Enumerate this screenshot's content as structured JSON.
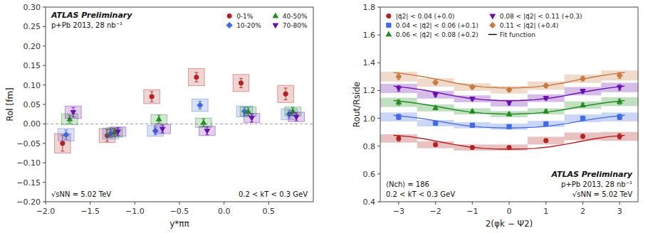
{
  "chart_data": [
    {
      "type": "scatter",
      "xlabel": "y*ππ",
      "ylabel": "Rol [fm]",
      "xlim": [
        -2.0,
        1.0
      ],
      "ylim": [
        -0.2,
        0.3
      ],
      "xticks": [
        {
          "value": -2,
          "label": "−2.0"
        },
        {
          "value": -1.5,
          "label": "−1.5"
        },
        {
          "value": -1,
          "label": "−1.0"
        },
        {
          "value": -0.5,
          "label": "−0.5"
        },
        {
          "value": 0,
          "label": "0.0"
        },
        0.5
      ],
      "yticks": [
        {
          "value": -0.2,
          "label": "−0.20"
        },
        {
          "value": -0.15,
          "label": "−0.15"
        },
        {
          "value": -0.1,
          "label": "−0.10"
        },
        {
          "value": -0.05,
          "label": "−0.05"
        },
        {
          "value": 0.0,
          "label": "0.00"
        },
        {
          "value": 0.05,
          "label": "0.05"
        },
        {
          "value": 0.1,
          "label": "0.10"
        },
        {
          "value": 0.15,
          "label": "0.15"
        },
        {
          "value": 0.2,
          "label": "0.20"
        },
        {
          "value": 0.25,
          "label": "0.25"
        },
        {
          "value": 0.3,
          "label": "0.30"
        }
      ],
      "grid": false,
      "legend": "upper right",
      "hline": 0,
      "annotations": [
        "ATLAS Preliminary",
        "p+Pb 2013, 28 nb⁻¹",
        "√sNN = 5.02 TeV",
        "0.2 < kT < 0.3 GeV"
      ],
      "series": [
        {
          "name": "0-1%",
          "color": "#b22222",
          "marker": "circle",
          "x": [
            -1.75,
            -1.25,
            -0.75,
            -0.25,
            0.25,
            0.75
          ],
          "values": [
            -0.05,
            -0.03,
            0.07,
            0.12,
            0.105,
            0.077
          ],
          "yerr_stat": [
            0.02,
            0.015,
            0.013,
            0.012,
            0.012,
            0.015
          ],
          "yerr_sys": [
            0.025,
            0.018,
            0.018,
            0.022,
            0.022,
            0.022
          ]
        },
        {
          "name": "10-20%",
          "color": "#4169e1",
          "marker": "diamond",
          "x": [
            -1.75,
            -1.25,
            -0.75,
            -0.25,
            0.25,
            0.75
          ],
          "values": [
            -0.028,
            -0.025,
            -0.018,
            0.048,
            0.032,
            0.025
          ],
          "yerr_stat": [
            0.012,
            0.01,
            0.01,
            0.01,
            0.01,
            0.01
          ],
          "yerr_sys": [
            0.016,
            0.014,
            0.014,
            0.016,
            0.014,
            0.014
          ]
        },
        {
          "name": "40-50%",
          "color": "#228B22",
          "marker": "triangle-up",
          "x": [
            -1.75,
            -1.25,
            -0.75,
            -0.25,
            0.25,
            0.75
          ],
          "values": [
            0.012,
            -0.022,
            0.012,
            0.003,
            0.032,
            0.032
          ],
          "yerr_stat": [
            0.01,
            0.01,
            0.01,
            0.01,
            0.01,
            0.01
          ],
          "yerr_sys": [
            0.014,
            0.012,
            0.012,
            0.012,
            0.012,
            0.012
          ]
        },
        {
          "name": "70-80%",
          "color": "#6a0dad",
          "marker": "triangle-down",
          "x": [
            -1.75,
            -1.25,
            -0.75,
            -0.25,
            0.25,
            0.75
          ],
          "values": [
            0.03,
            -0.02,
            -0.013,
            -0.018,
            0.015,
            0.018
          ],
          "yerr_stat": [
            0.012,
            0.01,
            0.01,
            0.01,
            0.01,
            0.01
          ],
          "yerr_sys": [
            0.016,
            0.012,
            0.012,
            0.012,
            0.012,
            0.012
          ]
        }
      ]
    },
    {
      "type": "scatter",
      "xlabel": "2(φk − Ψ2)",
      "ylabel": "Rout/Rside",
      "xlim": [
        -3.5,
        3.5
      ],
      "ylim": [
        0.4,
        1.8
      ],
      "xticks": [
        {
          "value": -3,
          "label": "−3"
        },
        {
          "value": -2,
          "label": "−2"
        },
        {
          "value": -1,
          "label": "−1"
        },
        0,
        1,
        2,
        3
      ],
      "yticks": [
        0.4,
        0.6,
        0.8,
        {
          "value": 1.0,
          "label": "1.0"
        },
        1.2,
        1.4,
        1.6,
        1.8
      ],
      "grid": false,
      "legend": "upper left",
      "fit_label": "Fit function",
      "annotations": [
        "ATLAS Preliminary",
        "p+Pb 2013, 28 nb⁻¹",
        "⟨Nch⟩ = 186",
        "√sNN = 5.02 TeV",
        "0.2 < kT < 0.3 GeV"
      ],
      "series": [
        {
          "name": "|q⃗2| < 0.04 (+0.0)",
          "color": "#b22222",
          "marker": "circle",
          "x": [
            -3.0,
            -2.0,
            -1.0,
            0.0,
            1.0,
            2.0,
            3.0
          ],
          "values": [
            0.855,
            0.81,
            0.79,
            0.79,
            0.84,
            0.87,
            0.87
          ],
          "yerr_stat": [
            0.02,
            0.014,
            0.012,
            0.012,
            0.012,
            0.014,
            0.02
          ],
          "band_low": [
            0.825,
            0.785,
            0.768,
            0.768,
            0.812,
            0.842,
            0.838
          ],
          "band_high": [
            0.885,
            0.835,
            0.812,
            0.812,
            0.868,
            0.898,
            0.902
          ],
          "fit_x": [
            -3.14,
            -2.7,
            -2.3,
            -1.9,
            -1.5,
            -1.1,
            -0.7,
            -0.3,
            0.0,
            0.3,
            0.7,
            1.1,
            1.5,
            1.9,
            2.3,
            2.7,
            3.14
          ],
          "fit_y": [
            0.878,
            0.868,
            0.852,
            0.832,
            0.812,
            0.795,
            0.784,
            0.779,
            0.778,
            0.779,
            0.784,
            0.795,
            0.812,
            0.832,
            0.852,
            0.868,
            0.878
          ]
        },
        {
          "name": "0.04 < |q⃗2| < 0.06 (+0.1)",
          "color": "#4169e1",
          "marker": "square",
          "x": [
            -3.0,
            -2.0,
            -1.0,
            0.0,
            1.0,
            2.0,
            3.0
          ],
          "values": [
            1.01,
            0.965,
            0.95,
            0.94,
            0.96,
            1.0,
            1.01
          ],
          "yerr_stat": [
            0.02,
            0.014,
            0.012,
            0.012,
            0.012,
            0.014,
            0.02
          ],
          "band_low": [
            0.978,
            0.942,
            0.928,
            0.918,
            0.938,
            0.972,
            0.978
          ],
          "band_high": [
            1.042,
            0.988,
            0.972,
            0.962,
            0.982,
            1.028,
            1.042
          ],
          "fit_x": [
            -3.14,
            -2.7,
            -2.3,
            -1.9,
            -1.5,
            -1.1,
            -0.7,
            -0.3,
            0.0,
            0.3,
            0.7,
            1.1,
            1.5,
            1.9,
            2.3,
            2.7,
            3.14
          ],
          "fit_y": [
            1.022,
            1.01,
            0.996,
            0.978,
            0.96,
            0.945,
            0.936,
            0.932,
            0.93,
            0.932,
            0.936,
            0.945,
            0.96,
            0.978,
            0.996,
            1.01,
            1.022
          ]
        },
        {
          "name": "0.06 < |q⃗2| < 0.08 (+0.2)",
          "color": "#228B22",
          "marker": "triangle-up",
          "x": [
            -3.0,
            -2.0,
            -1.0,
            0.0,
            1.0,
            2.0,
            3.0
          ],
          "values": [
            1.115,
            1.075,
            1.05,
            1.03,
            1.05,
            1.095,
            1.12
          ],
          "yerr_stat": [
            0.02,
            0.014,
            0.012,
            0.012,
            0.012,
            0.014,
            0.02
          ],
          "band_low": [
            1.082,
            1.05,
            1.028,
            1.008,
            1.028,
            1.068,
            1.088
          ],
          "band_high": [
            1.148,
            1.1,
            1.072,
            1.052,
            1.072,
            1.122,
            1.152
          ],
          "fit_x": [
            -3.14,
            -2.7,
            -2.3,
            -1.9,
            -1.5,
            -1.1,
            -0.7,
            -0.3,
            0.0,
            0.3,
            0.7,
            1.1,
            1.5,
            1.9,
            2.3,
            2.7,
            3.14
          ],
          "fit_y": [
            1.128,
            1.115,
            1.1,
            1.082,
            1.063,
            1.047,
            1.037,
            1.032,
            1.03,
            1.032,
            1.037,
            1.047,
            1.063,
            1.082,
            1.1,
            1.115,
            1.128
          ]
        },
        {
          "name": "0.08 < |q⃗2| < 0.11 (+0.3)",
          "color": "#6a0dad",
          "marker": "triangle-down",
          "x": [
            -3.0,
            -2.0,
            -1.0,
            0.0,
            1.0,
            2.0,
            3.0
          ],
          "values": [
            1.215,
            1.17,
            1.14,
            1.11,
            1.145,
            1.195,
            1.222
          ],
          "yerr_stat": [
            0.02,
            0.014,
            0.012,
            0.012,
            0.012,
            0.014,
            0.02
          ],
          "band_low": [
            1.182,
            1.142,
            1.115,
            1.085,
            1.118,
            1.165,
            1.188
          ],
          "band_high": [
            1.248,
            1.198,
            1.165,
            1.135,
            1.172,
            1.225,
            1.256
          ],
          "fit_x": [
            -3.14,
            -2.7,
            -2.3,
            -1.9,
            -1.5,
            -1.1,
            -0.7,
            -0.3,
            0.0,
            0.3,
            0.7,
            1.1,
            1.5,
            1.9,
            2.3,
            2.7,
            3.14
          ],
          "fit_y": [
            1.232,
            1.218,
            1.202,
            1.183,
            1.162,
            1.145,
            1.134,
            1.128,
            1.126,
            1.128,
            1.134,
            1.145,
            1.162,
            1.183,
            1.202,
            1.218,
            1.232
          ]
        },
        {
          "name": "0.11 < |q⃗2| (+0.4)",
          "color": "#c87941",
          "marker": "diamond",
          "x": [
            -3.0,
            -2.0,
            -1.0,
            0.0,
            1.0,
            2.0,
            3.0
          ],
          "values": [
            1.3,
            1.258,
            1.225,
            1.205,
            1.235,
            1.285,
            1.308
          ],
          "yerr_stat": [
            0.022,
            0.016,
            0.014,
            0.014,
            0.014,
            0.016,
            0.022
          ],
          "band_low": [
            1.265,
            1.228,
            1.198,
            1.178,
            1.205,
            1.255,
            1.272
          ],
          "band_high": [
            1.335,
            1.288,
            1.252,
            1.232,
            1.265,
            1.315,
            1.344
          ],
          "fit_x": [
            -3.14,
            -2.7,
            -2.3,
            -1.9,
            -1.5,
            -1.1,
            -0.7,
            -0.3,
            0.0,
            0.3,
            0.7,
            1.1,
            1.5,
            1.9,
            2.3,
            2.7,
            3.14
          ],
          "fit_y": [
            1.33,
            1.315,
            1.298,
            1.278,
            1.256,
            1.238,
            1.226,
            1.22,
            1.218,
            1.22,
            1.226,
            1.238,
            1.256,
            1.278,
            1.298,
            1.315,
            1.33
          ]
        }
      ]
    }
  ]
}
